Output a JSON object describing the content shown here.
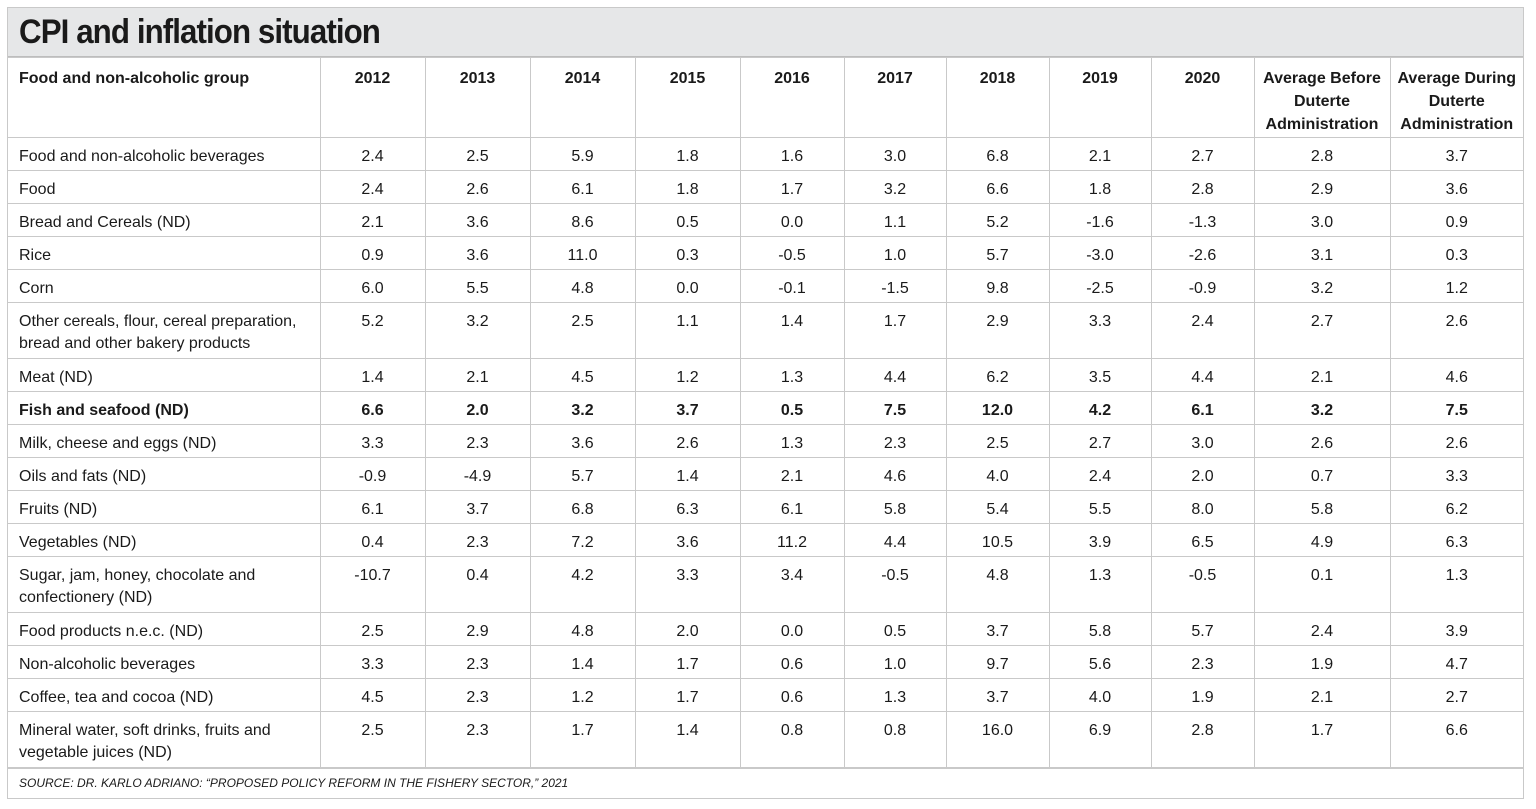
{
  "title": "CPI and inflation situation",
  "columns": [
    "Food and non-alcoholic group",
    "2012",
    "2013",
    "2014",
    "2015",
    "2016",
    "2017",
    "2018",
    "2019",
    "2020",
    "Average Before Duterte Administration",
    "Average During Duterte Administration"
  ],
  "rows": [
    {
      "label": "Food and non-alcoholic beverages",
      "values": [
        "2.4",
        "2.5",
        "5.9",
        "1.8",
        "1.6",
        "3.0",
        "6.8",
        "2.1",
        "2.7",
        "2.8",
        "3.7"
      ]
    },
    {
      "label": "Food",
      "values": [
        "2.4",
        "2.6",
        "6.1",
        "1.8",
        "1.7",
        "3.2",
        "6.6",
        "1.8",
        "2.8",
        "2.9",
        "3.6"
      ]
    },
    {
      "label": "Bread and Cereals (ND)",
      "values": [
        "2.1",
        "3.6",
        "8.6",
        "0.5",
        "0.0",
        "1.1",
        "5.2",
        "-1.6",
        "-1.3",
        "3.0",
        "0.9"
      ]
    },
    {
      "label": "Rice",
      "values": [
        "0.9",
        "3.6",
        "11.0",
        "0.3",
        "-0.5",
        "1.0",
        "5.7",
        "-3.0",
        "-2.6",
        "3.1",
        "0.3"
      ]
    },
    {
      "label": "Corn",
      "values": [
        "6.0",
        "5.5",
        "4.8",
        "0.0",
        "-0.1",
        "-1.5",
        "9.8",
        "-2.5",
        "-0.9",
        "3.2",
        "1.2"
      ]
    },
    {
      "label": "Other cereals, flour, cereal preparation, bread and other bakery products",
      "values": [
        "5.2",
        "3.2",
        "2.5",
        "1.1",
        "1.4",
        "1.7",
        "2.9",
        "3.3",
        "2.4",
        "2.7",
        "2.6"
      ]
    },
    {
      "label": "Meat (ND)",
      "values": [
        "1.4",
        "2.1",
        "4.5",
        "1.2",
        "1.3",
        "4.4",
        "6.2",
        "3.5",
        "4.4",
        "2.1",
        "4.6"
      ]
    },
    {
      "label": "Fish and seafood (ND)",
      "bold": true,
      "values": [
        "6.6",
        "2.0",
        "3.2",
        "3.7",
        "0.5",
        "7.5",
        "12.0",
        "4.2",
        "6.1",
        "3.2",
        "7.5"
      ]
    },
    {
      "label": "Milk, cheese and eggs (ND)",
      "values": [
        "3.3",
        "2.3",
        "3.6",
        "2.6",
        "1.3",
        "2.3",
        "2.5",
        "2.7",
        "3.0",
        "2.6",
        "2.6"
      ]
    },
    {
      "label": "Oils and fats (ND)",
      "values": [
        "-0.9",
        "-4.9",
        "5.7",
        "1.4",
        "2.1",
        "4.6",
        "4.0",
        "2.4",
        "2.0",
        "0.7",
        "3.3"
      ]
    },
    {
      "label": "Fruits (ND)",
      "values": [
        "6.1",
        "3.7",
        "6.8",
        "6.3",
        "6.1",
        "5.8",
        "5.4",
        "5.5",
        "8.0",
        "5.8",
        "6.2"
      ]
    },
    {
      "label": "Vegetables (ND)",
      "values": [
        "0.4",
        "2.3",
        "7.2",
        "3.6",
        "11.2",
        "4.4",
        "10.5",
        "3.9",
        "6.5",
        "4.9",
        "6.3"
      ]
    },
    {
      "label": "Sugar, jam, honey, chocolate and confectionery (ND)",
      "values": [
        "-10.7",
        "0.4",
        "4.2",
        "3.3",
        "3.4",
        "-0.5",
        "4.8",
        "1.3",
        "-0.5",
        "0.1",
        "1.3"
      ]
    },
    {
      "label": "Food products n.e.c. (ND)",
      "values": [
        "2.5",
        "2.9",
        "4.8",
        "2.0",
        "0.0",
        "0.5",
        "3.7",
        "5.8",
        "5.7",
        "2.4",
        "3.9"
      ]
    },
    {
      "label": "Non-alcoholic beverages",
      "values": [
        "3.3",
        "2.3",
        "1.4",
        "1.7",
        "0.6",
        "1.0",
        "9.7",
        "5.6",
        "2.3",
        "1.9",
        "4.7"
      ]
    },
    {
      "label": "Coffee, tea and cocoa (ND)",
      "values": [
        "4.5",
        "2.3",
        "1.2",
        "1.7",
        "0.6",
        "1.3",
        "3.7",
        "4.0",
        "1.9",
        "2.1",
        "2.7"
      ]
    },
    {
      "label": "Mineral water, soft drinks, fruits and vegetable juices (ND)",
      "values": [
        "2.5",
        "2.3",
        "1.7",
        "1.4",
        "0.8",
        "0.8",
        "16.0",
        "6.9",
        "2.8",
        "1.7",
        "6.6"
      ]
    }
  ],
  "source": "SOURCE: DR. KARLO ADRIANO: “PROPOSED POLICY REFORM IN THE FISHERY SECTOR,” 2021",
  "colors": {
    "title_band": "#e6e7e8",
    "grid": "#c9c9c9",
    "text": "#1a1a1a"
  }
}
